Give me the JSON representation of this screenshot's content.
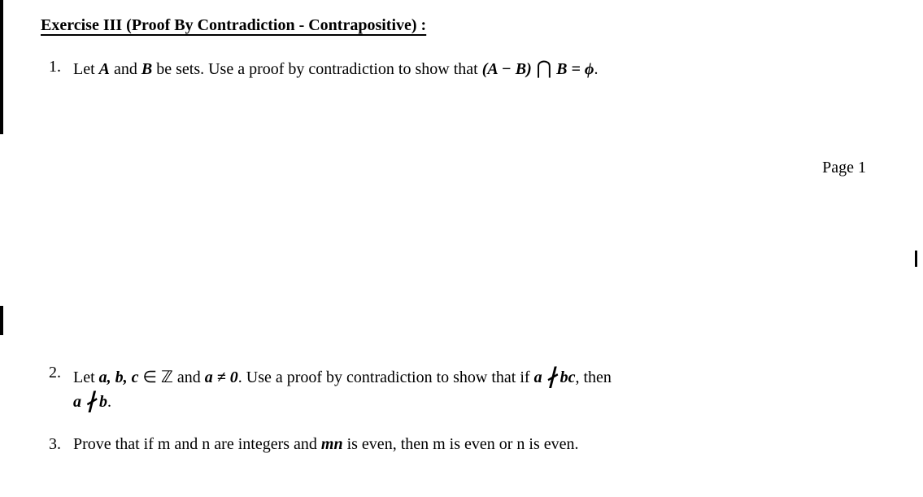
{
  "title": "Exercise III (Proof By Contradiction - Contrapositive) :",
  "page_label": "Page 1",
  "problems": {
    "p1": {
      "num": "1.",
      "pre": "Let ",
      "A": "A",
      "mid1": " and ",
      "B": "B",
      "mid2": " be sets. Use a proof by contradiction to show that ",
      "expr_open": "(",
      "expr_A": "A",
      "expr_minus": " − ",
      "expr_B": "B",
      "expr_close": ")",
      "cap": " ⋂ ",
      "expr_B2": "B",
      "eq": " = ",
      "phi": "ϕ",
      "end": "."
    },
    "p2": {
      "num": "2.",
      "pre": "Let ",
      "abc": "a, b, c",
      "in": " ∈ ",
      "Z": "ℤ",
      "mid1": " and ",
      "a": "a",
      "neq": " ≠ ",
      "zero": "0",
      "mid2": ". Use a proof by contradiction to show that if ",
      "a2": "a",
      "sp1": "  ",
      "bc": "bc",
      "then": ", then",
      "a3": "a",
      "sp2": "  ",
      "b": "b",
      "end": "."
    },
    "p3": {
      "num": "3.",
      "pre": "Prove that if m and n are integers and ",
      "mn": "mn",
      "post": " is even, then m is even or n is even."
    }
  },
  "colors": {
    "text": "#000000",
    "background": "#ffffff"
  },
  "typography": {
    "body_fontsize": 20,
    "font_family": "Times New Roman"
  }
}
